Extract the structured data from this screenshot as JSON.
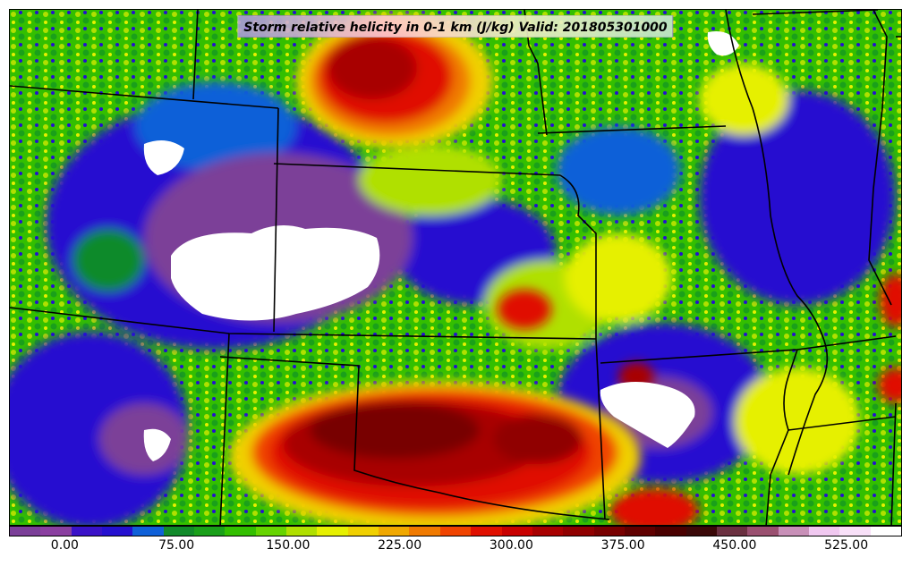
{
  "title": "Storm relative helicity in 0-1 km (J/kg) Valid: 201805301000",
  "colorbar": {
    "colors": [
      "#7b3f98",
      "#8a3fa0",
      "#3a12c8",
      "#2510d0",
      "#0f60d8",
      "#118a2a",
      "#1aa01a",
      "#33bf00",
      "#66d400",
      "#b0e000",
      "#e6f000",
      "#f0d000",
      "#f0a800",
      "#f07a00",
      "#f04400",
      "#e01000",
      "#c80000",
      "#a80000",
      "#900000",
      "#780000",
      "#600000",
      "#4a0000",
      "#3a0808",
      "#6a3040",
      "#9a5070",
      "#c890b8",
      "#f0c8f0",
      "#f8e0f8",
      "#ffffff"
    ],
    "ticks": [
      {
        "label": "0.00",
        "value": 0
      },
      {
        "label": "75.00",
        "value": 75
      },
      {
        "label": "150.00",
        "value": 150
      },
      {
        "label": "225.00",
        "value": 225
      },
      {
        "label": "300.00",
        "value": 300
      },
      {
        "label": "375.00",
        "value": 375
      },
      {
        "label": "450.00",
        "value": 450
      },
      {
        "label": "525.00",
        "value": 525
      }
    ],
    "min": -37.5,
    "max": 562.5
  }
}
